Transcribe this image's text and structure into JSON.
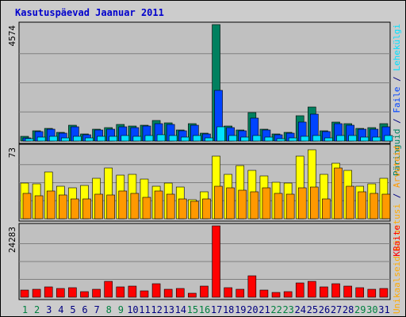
{
  "chart_data": {
    "type": "bar",
    "title": "Kasutuspäevad Jaanuar 2011",
    "x_labels": [
      "1",
      "2",
      "3",
      "4",
      "5",
      "6",
      "7",
      "8",
      "9",
      "10",
      "11",
      "12",
      "13",
      "14",
      "15",
      "16",
      "17",
      "18",
      "19",
      "20",
      "21",
      "22",
      "23",
      "24",
      "25",
      "26",
      "27",
      "28",
      "29",
      "30",
      "31"
    ],
    "weekend_days": [
      "1",
      "2",
      "8",
      "9",
      "15",
      "16",
      "22",
      "23",
      "29",
      "30"
    ],
    "colors": {
      "hits": "#00805f",
      "files": "#0044ff",
      "pages": "#00e0ff",
      "visits": "#ffff00",
      "sites": "#ff9900",
      "kbytes": "#ff0000",
      "weekday_label": "#000080",
      "weekend_label": "#008040"
    },
    "panels": [
      {
        "max_label": "4574",
        "ylim": [
          0,
          4574
        ],
        "legend_text": [
          {
            "text": "Päringuid",
            "color": "#00805f"
          },
          {
            "text": " / ",
            "color": "#000080"
          },
          {
            "text": "Faile",
            "color": "#0044ff"
          },
          {
            "text": " / ",
            "color": "#000080"
          },
          {
            "text": "Lehekülgi",
            "color": "#00e0ff"
          }
        ],
        "series": [
          {
            "name": "Päringuid",
            "color": "#00805f",
            "values": [
              180,
              420,
              500,
              340,
              620,
              280,
              480,
              520,
              650,
              580,
              620,
              800,
              730,
              450,
              700,
              300,
              4574,
              600,
              450,
              1120,
              480,
              270,
              330,
              1000,
              1350,
              420,
              760,
              700,
              500,
              520,
              670
            ]
          },
          {
            "name": "Faile",
            "color": "#0044ff",
            "values": [
              140,
              380,
              460,
              310,
              560,
              250,
              440,
              470,
              560,
              540,
              580,
              680,
              640,
              420,
              620,
              280,
              2000,
              520,
              400,
              900,
              430,
              240,
              300,
              750,
              1050,
              380,
              690,
              630,
              460,
              470,
              570
            ]
          },
          {
            "name": "Lehekülgi",
            "color": "#00e0ff",
            "values": [
              80,
              160,
              200,
              140,
              190,
              110,
              180,
              180,
              220,
              190,
              210,
              260,
              230,
              160,
              220,
              110,
              560,
              230,
              170,
              230,
              170,
              100,
              120,
              200,
              230,
              140,
              230,
              220,
              170,
              160,
              210
            ]
          }
        ]
      },
      {
        "max_label": "73",
        "ylim": [
          0,
          73
        ],
        "legend_text": [
          {
            "text": "Unikaalseid külastusi",
            "color": "#ffaa00"
          },
          {
            "text": " / ",
            "color": "#000080"
          },
          {
            "text": "Arvuteid",
            "color": "#ff9900"
          }
        ],
        "series": [
          {
            "name": "Unikaalseid külastusi",
            "color": "#ffff00",
            "values": [
              36,
              35,
              47,
              33,
              31,
              34,
              41,
              51,
              44,
              45,
              40,
              33,
              36,
              32,
              19,
              27,
              63,
              45,
              54,
              49,
              43,
              37,
              36,
              63,
              70,
              45,
              56,
              49,
              33,
              35,
              41
            ]
          },
          {
            "name": "Arvuteid",
            "color": "#ff9900",
            "values": [
              26,
              23,
              28,
              24,
              20,
              20,
              25,
              24,
              28,
              26,
              22,
              28,
              25,
              20,
              18,
              20,
              33,
              31,
              29,
              27,
              31,
              26,
              25,
              31,
              32,
              20,
              51,
              33,
              27,
              26,
              25
            ]
          }
        ]
      },
      {
        "max_label": "24283",
        "ylim": [
          0,
          24283
        ],
        "legend_text": [
          {
            "text": "KBaite",
            "color": "#ff0000"
          }
        ],
        "series": [
          {
            "name": "KBaite",
            "color": "#ff0000",
            "values": [
              2300,
              2600,
              3400,
              3000,
              3200,
              1900,
              2800,
              5300,
              3600,
              3800,
              2100,
              4500,
              2600,
              2900,
              1400,
              3800,
              24283,
              3300,
              2600,
              7300,
              2500,
              1600,
              1800,
              4800,
              5500,
              3600,
              4500,
              3800,
              3300,
              2800,
              2900
            ]
          }
        ]
      }
    ]
  }
}
